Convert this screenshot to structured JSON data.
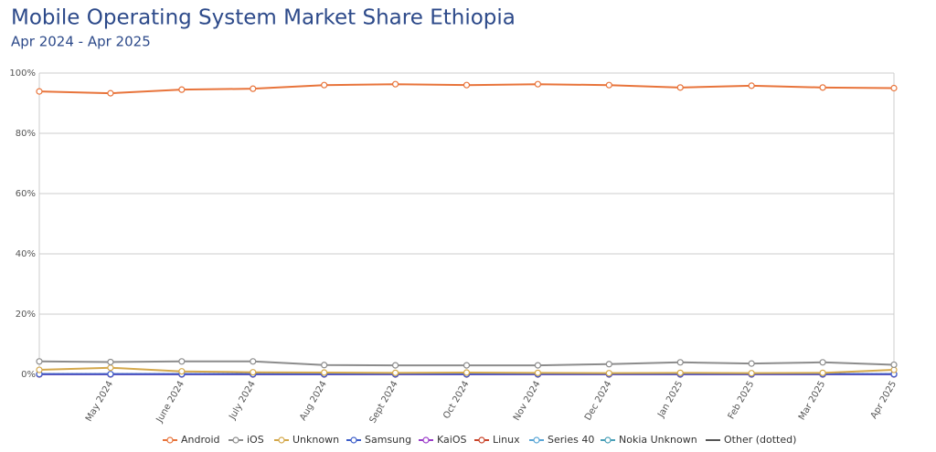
{
  "chart_data": {
    "type": "line",
    "title": "Mobile Operating System Market Share Ethiopia",
    "subtitle": "Apr 2024 - Apr 2025",
    "categories": [
      null,
      "May 2024",
      "June 2024",
      "July 2024",
      "Aug 2024",
      "Sept 2024",
      "Oct 2024",
      "Nov 2024",
      "Dec 2024",
      "Jan 2025",
      "Feb 2025",
      "Mar 2025",
      "Apr 2025"
    ],
    "ylim": [
      0,
      100
    ],
    "yticks": [
      {
        "value": 0,
        "label": "0%"
      },
      {
        "value": 20,
        "label": "20%"
      },
      {
        "value": 40,
        "label": "40%"
      },
      {
        "value": 60,
        "label": "60%"
      },
      {
        "value": 80,
        "label": "80%"
      },
      {
        "value": 100,
        "label": "100%"
      }
    ],
    "grid": true,
    "series": [
      {
        "name": "Android",
        "color": "#e8743b",
        "values": [
          93.9,
          93.3,
          94.5,
          94.8,
          96.0,
          96.3,
          96.0,
          96.3,
          96.0,
          95.2,
          95.8,
          95.2,
          95.0
        ]
      },
      {
        "name": "iOS",
        "color": "#8c8c8c",
        "values": [
          4.3,
          4.1,
          4.3,
          4.3,
          3.1,
          3.0,
          3.0,
          3.0,
          3.4,
          4.0,
          3.6,
          4.0,
          3.2
        ]
      },
      {
        "name": "Unknown",
        "color": "#d4a84b",
        "values": [
          1.5,
          2.2,
          1.0,
          0.7,
          0.6,
          0.5,
          0.6,
          0.5,
          0.4,
          0.5,
          0.4,
          0.5,
          1.5
        ]
      },
      {
        "name": "Samsung",
        "color": "#3d5ec9",
        "values": [
          0.1,
          0.1,
          0.1,
          0.1,
          0.1,
          0.1,
          0.1,
          0.1,
          0.1,
          0.1,
          0.1,
          0.1,
          0.1
        ]
      },
      {
        "name": "KaiOS",
        "color": "#9b3dc9",
        "values": [
          0.05,
          0.05,
          0.05,
          0.05,
          0.05,
          0.05,
          0.05,
          0.05,
          0.05,
          0.05,
          0.05,
          0.05,
          0.05
        ]
      },
      {
        "name": "Linux",
        "color": "#c9452b",
        "values": [
          0.02,
          0.02,
          0.02,
          0.02,
          0.02,
          0.02,
          0.02,
          0.02,
          0.02,
          0.02,
          0.02,
          0.02,
          0.02
        ]
      },
      {
        "name": "Series 40",
        "color": "#5aa6d6",
        "values": [
          0.02,
          0.02,
          0.02,
          0.02,
          0.02,
          0.02,
          0.02,
          0.02,
          0.02,
          0.02,
          0.02,
          0.02,
          0.02
        ]
      },
      {
        "name": "Nokia Unknown",
        "color": "#4aa0b8",
        "values": [
          0.01,
          0.01,
          0.01,
          0.01,
          0.01,
          0.01,
          0.01,
          0.01,
          0.01,
          0.01,
          0.01,
          0.01,
          0.01
        ]
      },
      {
        "name": "Other (dotted)",
        "color": "#555555",
        "dotted": true,
        "values": [
          0.1,
          0.1,
          0.1,
          0.1,
          0.1,
          0.1,
          0.1,
          0.1,
          0.1,
          0.1,
          0.1,
          0.1,
          0.1
        ]
      }
    ]
  }
}
